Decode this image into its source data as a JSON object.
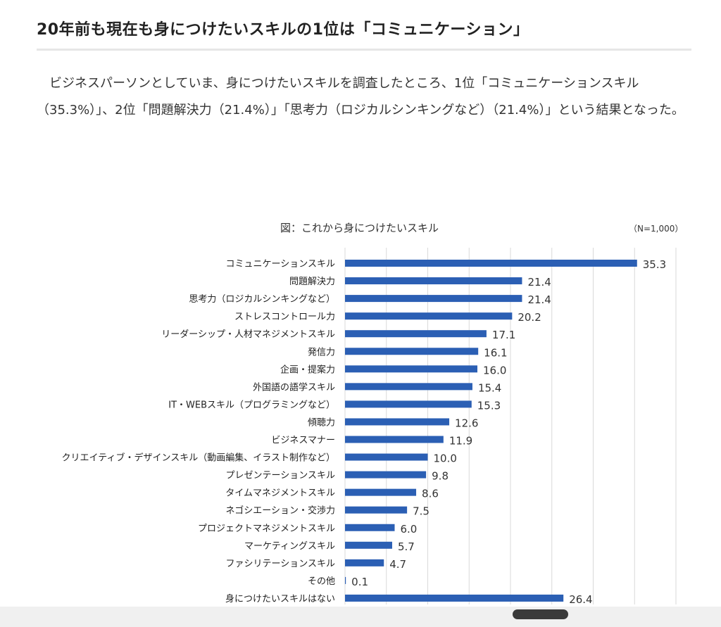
{
  "article": {
    "title": "20年前も現在も身につけたいスキルの1位は「コミュニケーション」",
    "paragraph": "ビジネスパーソンとしていま、身につけたいスキルを調査したところ、1位「コミュニケーションスキル（35.3%）」、2位「問題解決力（21.4%）」「思考力（ロジカルシンキングなど）（21.4%）」という結果となった。"
  },
  "chart_data": {
    "type": "bar",
    "orientation": "horizontal",
    "title": "図：これから身につけたいスキル",
    "note": "（N=1,000）",
    "categories": [
      "コミュニケーションスキル",
      "問題解決力",
      "思考力（ロジカルシンキングなど）",
      "ストレスコントロール力",
      "リーダーシップ・人材マネジメントスキル",
      "発信力",
      "企画・提案力",
      "外国語の語学スキル",
      "IT・WEBスキル（プログラミングなど）",
      "傾聴力",
      "ビジネスマナー",
      "クリエイティブ・デザインスキル（動画編集、イラスト制作など）",
      "プレゼンテーションスキル",
      "タイムマネジメントスキル",
      "ネゴシエーション・交渉力",
      "プロジェクトマネジメントスキル",
      "マーケティングスキル",
      "ファシリテーションスキル",
      "その他",
      "身につけたいスキルはない"
    ],
    "values": [
      35.3,
      21.4,
      21.4,
      20.2,
      17.1,
      16.1,
      16.0,
      15.4,
      15.3,
      12.6,
      11.9,
      10.0,
      9.8,
      8.6,
      7.5,
      6.0,
      5.7,
      4.7,
      0.1,
      26.4
    ],
    "value_labels": [
      "35.3",
      "21.4",
      "21.4",
      "20.2",
      "17.1",
      "16.1",
      "16.0",
      "15.4",
      "15.3",
      "12.6",
      "11.9",
      "10.0",
      "9.8",
      "8.6",
      "7.5",
      "6.0",
      "5.7",
      "4.7",
      "0.1",
      "26.4"
    ],
    "xlim": [
      0,
      40
    ],
    "grid_step": 5,
    "grid": true,
    "bar_color": "#2b5fb4",
    "grid_color": "#d9d9d9"
  }
}
